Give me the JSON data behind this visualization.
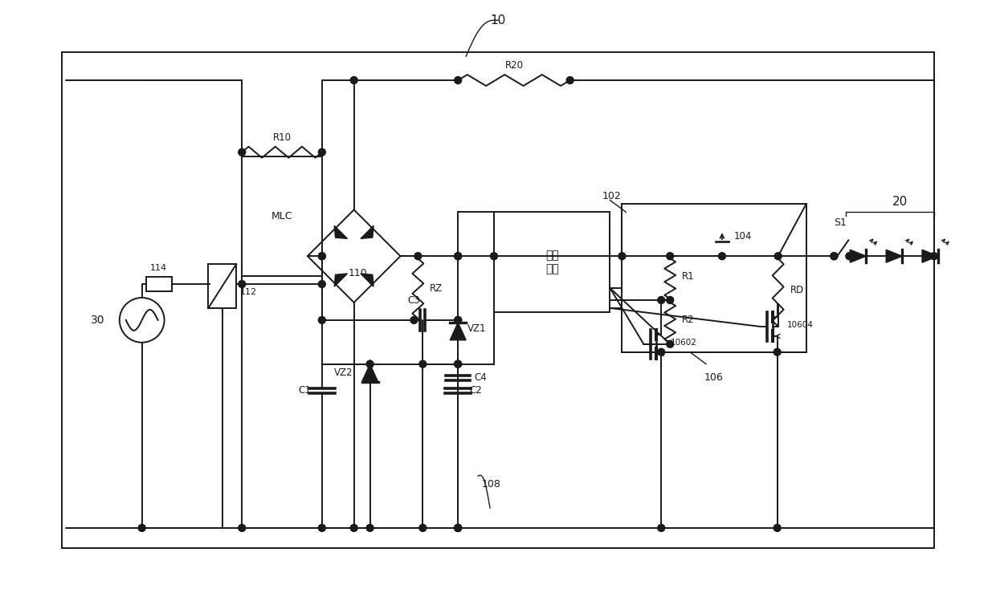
{
  "bg_color": "#ffffff",
  "line_color": "#1a1a1a",
  "labels": {
    "10": "10",
    "20": "20",
    "30": "30",
    "102": "102",
    "104": "104",
    "106": "106",
    "108": "108",
    "110": "110",
    "112": "112",
    "114": "114",
    "10602": "10602",
    "10604": "10604",
    "R10": "R10",
    "R20": "R20",
    "R1": "R1",
    "R2": "R2",
    "RZ": "RZ",
    "RD": "RD",
    "MLC": "MLC",
    "C1": "C1",
    "C2": "C2",
    "C3": "C3",
    "C4": "C4",
    "VZ1": "VZ1",
    "VZ2": "VZ2",
    "S1": "S1",
    "ctrl": "控制\n单元"
  }
}
